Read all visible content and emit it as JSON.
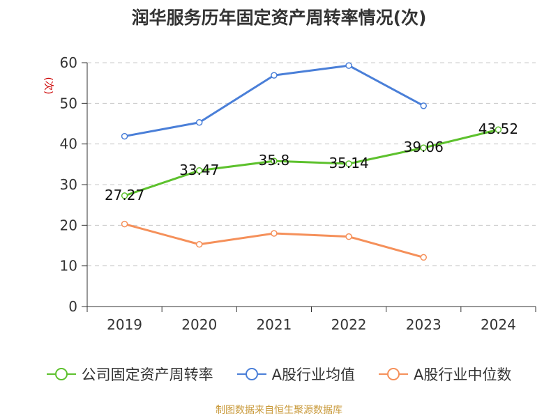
{
  "title": "润华服务历年固定资产周转率情况(次)",
  "source": "制图数据来自恒生聚源数据库",
  "colors": {
    "company": "#5dc12d",
    "industry_avg": "#4a7fd8",
    "industry_median": "#f5905a",
    "ylabel": "#cc0000",
    "source": "#c99a3b"
  },
  "chart_data": {
    "type": "line",
    "title": "润华服务历年固定资产周转率情况(次)",
    "xlabel": "",
    "ylabel": "(次)",
    "categories": [
      "2019",
      "2020",
      "2021",
      "2022",
      "2023",
      "2024"
    ],
    "ylim": [
      0,
      60
    ],
    "yticks": [
      0,
      10,
      20,
      30,
      40,
      50,
      60
    ],
    "grid": true,
    "legend": "bottom",
    "series": [
      {
        "name": "公司固定资产周转率",
        "key": "company",
        "values": [
          27.27,
          33.47,
          35.8,
          35.14,
          39.06,
          43.52
        ],
        "labels": [
          "27.27",
          "33.47",
          "35.8",
          "35.14",
          "39.06",
          "43.52"
        ],
        "data_labels": true
      },
      {
        "name": "A股行业均值",
        "key": "industry_avg",
        "values": [
          41.9,
          45.3,
          56.9,
          59.3,
          49.4,
          null
        ],
        "data_labels": false
      },
      {
        "name": "A股行业中位数",
        "key": "industry_median",
        "values": [
          20.3,
          15.3,
          18.0,
          17.2,
          12.1,
          null
        ],
        "data_labels": false
      }
    ]
  }
}
